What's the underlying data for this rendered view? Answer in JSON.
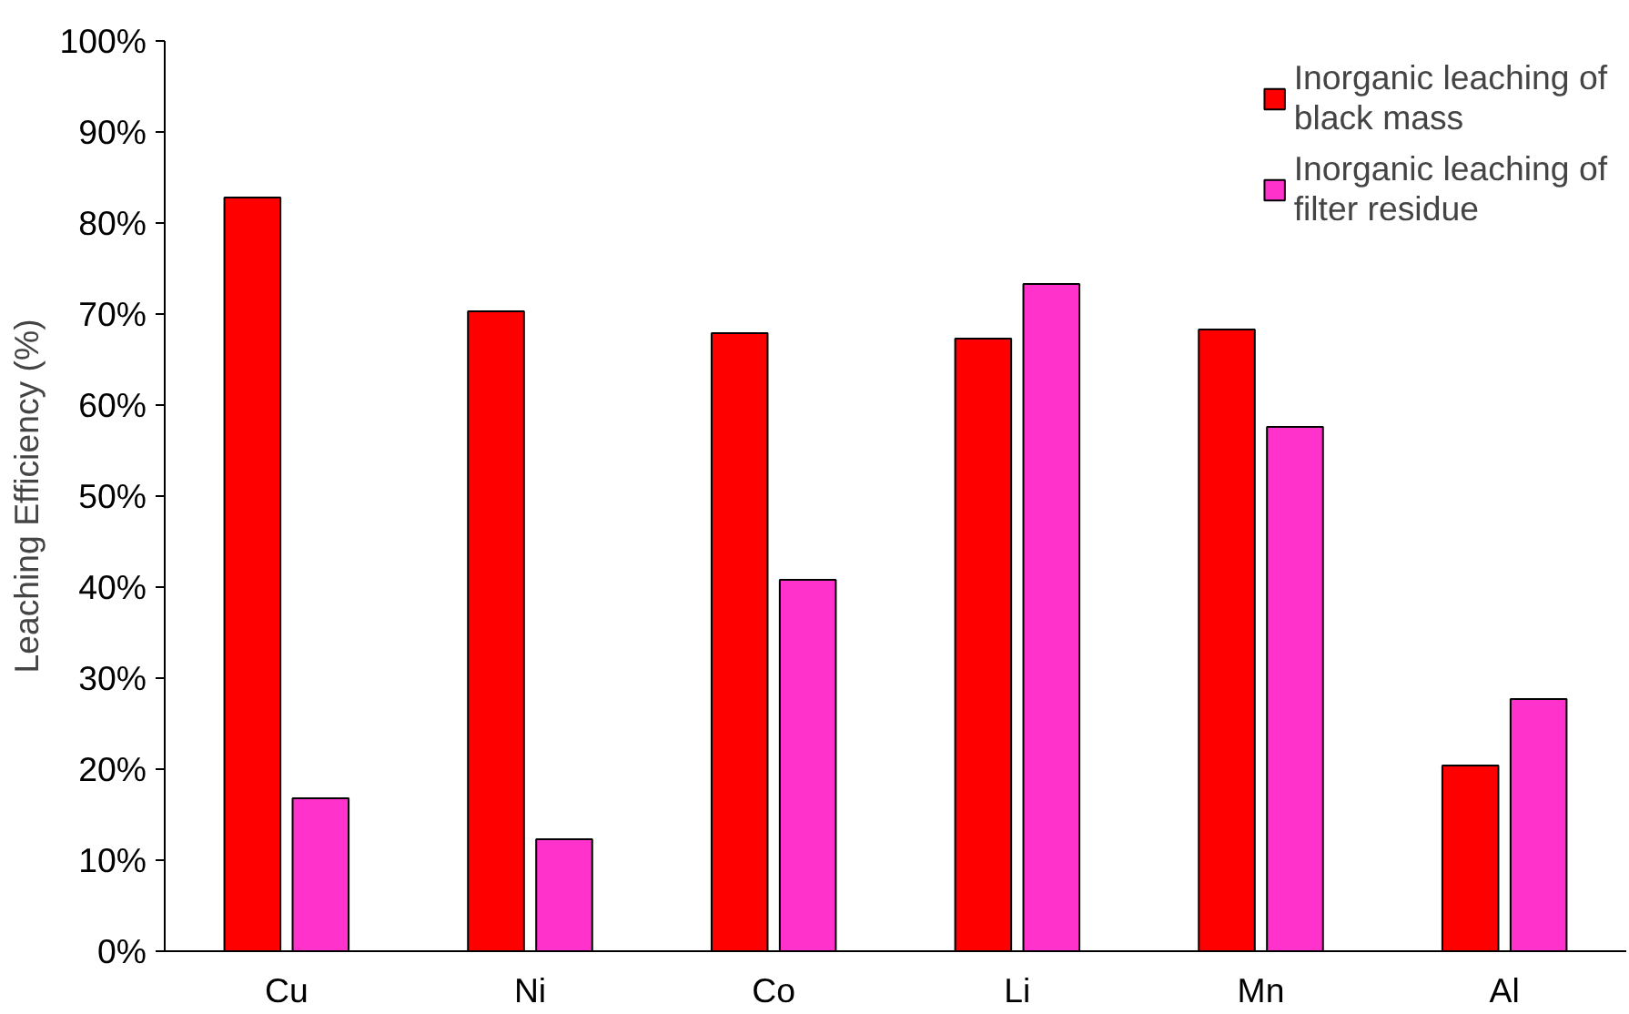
{
  "chart_data": {
    "type": "bar",
    "ylabel": "Leaching Efficiency (%)",
    "categories": [
      "Cu",
      "Ni",
      "Co",
      "Li",
      "Mn",
      "Al"
    ],
    "series": [
      {
        "name": "Inorganic leaching of black mass",
        "color": "#ff0000",
        "values": [
          82.8,
          70.3,
          67.9,
          67.3,
          68.3,
          20.4
        ]
      },
      {
        "name": "Inorganic leaching of filter residue",
        "color": "#ff33cc",
        "values": [
          16.8,
          12.3,
          40.8,
          73.3,
          57.6,
          27.7
        ]
      }
    ],
    "ylim": [
      0,
      100
    ],
    "yticks": [
      {
        "value": 0,
        "label": "0%"
      },
      {
        "value": 10,
        "label": "10%"
      },
      {
        "value": 20,
        "label": "20%"
      },
      {
        "value": 30,
        "label": "30%"
      },
      {
        "value": 40,
        "label": "40%"
      },
      {
        "value": 50,
        "label": "50%"
      },
      {
        "value": 60,
        "label": "60%"
      },
      {
        "value": 70,
        "label": "70%"
      },
      {
        "value": 80,
        "label": "80%"
      },
      {
        "value": 90,
        "label": "90%"
      },
      {
        "value": 100,
        "label": "100%"
      }
    ],
    "grid": false,
    "legend": "top right"
  }
}
